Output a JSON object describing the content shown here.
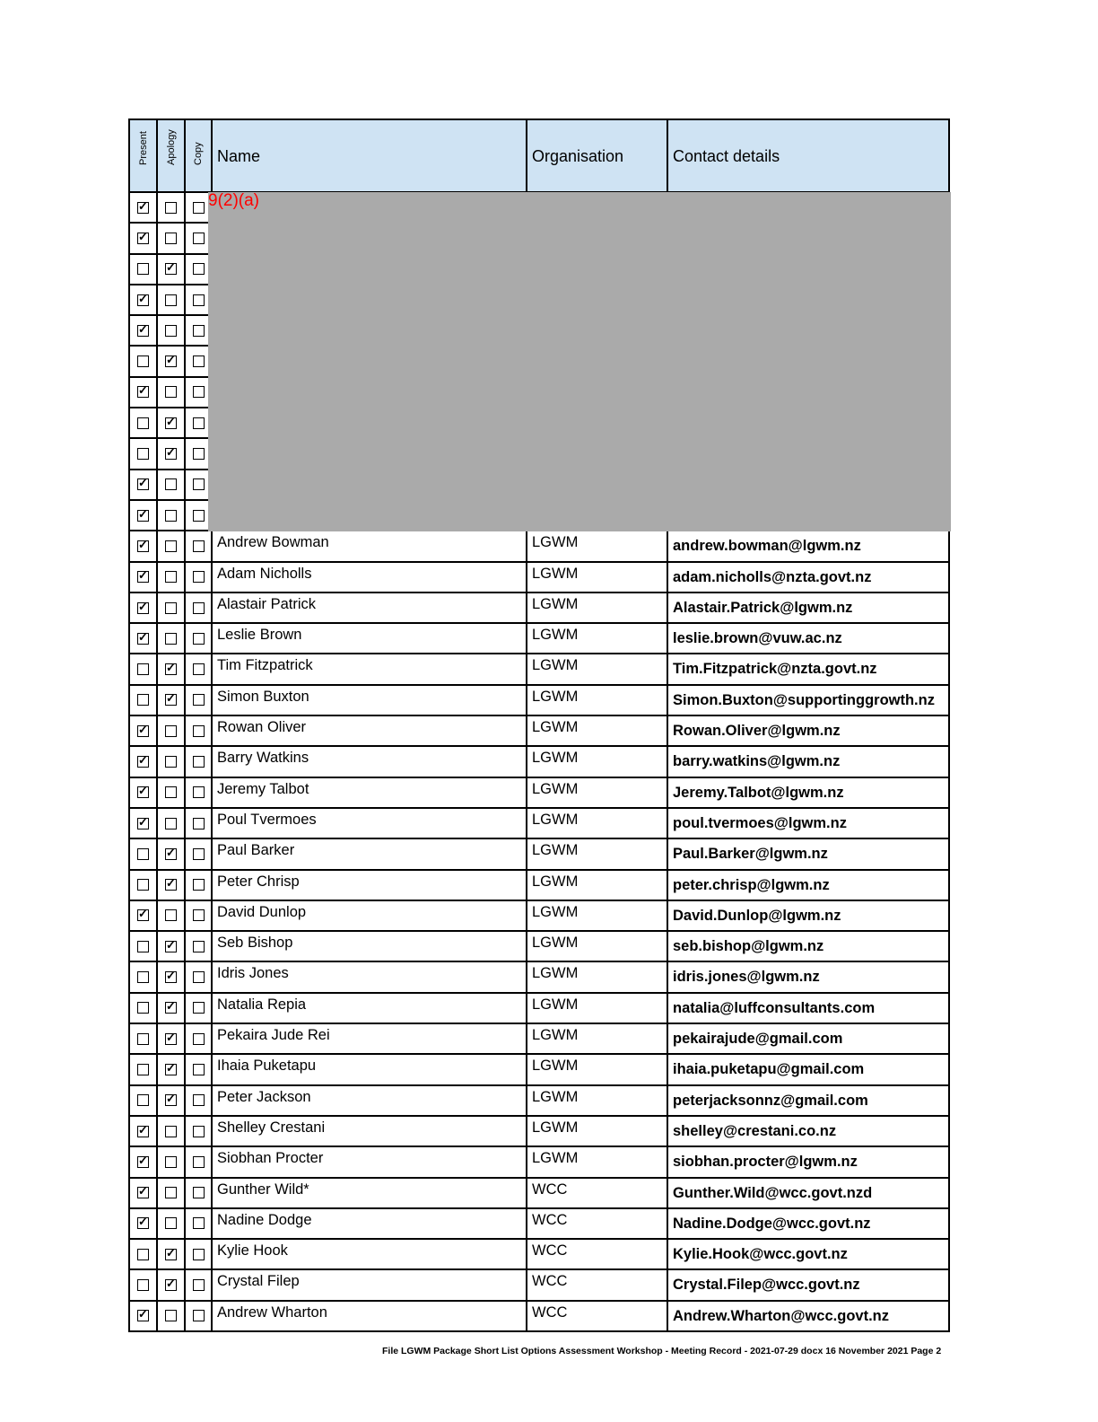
{
  "headers": {
    "present": "Present",
    "apology": "Apology",
    "copy": "Copy",
    "name": "Name",
    "organisation": "Organisation",
    "contact": "Contact details"
  },
  "redaction": {
    "label": "9(2)(a)",
    "color": "#aaaaaa"
  },
  "header_bg": "#cfe3f3",
  "redacted_rows": [
    {
      "status": "present"
    },
    {
      "status": "present"
    },
    {
      "status": "apology"
    },
    {
      "status": "present"
    },
    {
      "status": "present"
    },
    {
      "status": "apology"
    },
    {
      "status": "present"
    },
    {
      "status": "apology"
    },
    {
      "status": "apology"
    },
    {
      "status": "present"
    },
    {
      "status": "present"
    }
  ],
  "rows": [
    {
      "status": "present",
      "name": "Andrew Bowman",
      "org": "LGWM",
      "email": "andrew.bowman@lgwm.nz"
    },
    {
      "status": "present",
      "name": "Adam Nicholls",
      "org": "LGWM",
      "email": "adam.nicholls@nzta.govt.nz"
    },
    {
      "status": "present",
      "name": "Alastair Patrick",
      "org": "LGWM",
      "email": "Alastair.Patrick@lgwm.nz"
    },
    {
      "status": "present",
      "name": "Leslie Brown",
      "org": "LGWM",
      "email": "leslie.brown@vuw.ac.nz"
    },
    {
      "status": "apology",
      "name": "Tim Fitzpatrick",
      "org": "LGWM",
      "email": "Tim.Fitzpatrick@nzta.govt.nz"
    },
    {
      "status": "apology",
      "name": "Simon Buxton",
      "org": "LGWM",
      "email": "Simon.Buxton@supportinggrowth.nz"
    },
    {
      "status": "present",
      "name": "Rowan Oliver",
      "org": "LGWM",
      "email": "Rowan.Oliver@lgwm.nz"
    },
    {
      "status": "present",
      "name": "Barry Watkins",
      "org": "LGWM",
      "email": "barry.watkins@lgwm.nz"
    },
    {
      "status": "present",
      "name": "Jeremy Talbot",
      "org": "LGWM",
      "email": "Jeremy.Talbot@lgwm.nz"
    },
    {
      "status": "present",
      "name": "Poul Tvermoes",
      "org": "LGWM",
      "email": "poul.tvermoes@lgwm.nz"
    },
    {
      "status": "apology",
      "name": "Paul Barker",
      "org": "LGWM",
      "email": "Paul.Barker@lgwm.nz"
    },
    {
      "status": "apology",
      "name": "Peter Chrisp",
      "org": "LGWM",
      "email": "peter.chrisp@lgwm.nz"
    },
    {
      "status": "present",
      "name": "David Dunlop",
      "org": "LGWM",
      "email": "David.Dunlop@lgwm.nz"
    },
    {
      "status": "apology",
      "name": "Seb Bishop",
      "org": "LGWM",
      "email": "seb.bishop@lgwm.nz"
    },
    {
      "status": "apology",
      "name": "Idris Jones",
      "org": "LGWM",
      "email": "idris.jones@lgwm.nz"
    },
    {
      "status": "apology",
      "name": "Natalia Repia",
      "org": "LGWM",
      "email": "natalia@luffconsultants.com"
    },
    {
      "status": "apology",
      "name": "Pekaira Jude Rei",
      "org": "LGWM",
      "email": "pekairajude@gmail.com"
    },
    {
      "status": "apology",
      "name": "Ihaia Puketapu",
      "org": "LGWM",
      "email": "ihaia.puketapu@gmail.com"
    },
    {
      "status": "apology",
      "name": "Peter Jackson",
      "org": "LGWM",
      "email": "peterjacksonnz@gmail.com"
    },
    {
      "status": "present",
      "name": "Shelley Crestani",
      "org": "LGWM",
      "email": "shelley@crestani.co.nz"
    },
    {
      "status": "present",
      "name": "Siobhan Procter",
      "org": "LGWM",
      "email": "siobhan.procter@lgwm.nz"
    },
    {
      "status": "present",
      "name": "Gunther Wild*",
      "org": "WCC",
      "email": "Gunther.Wild@wcc.govt.nzd"
    },
    {
      "status": "present",
      "name": "Nadine Dodge",
      "org": "WCC",
      "email": "Nadine.Dodge@wcc.govt.nz"
    },
    {
      "status": "apology",
      "name": "Kylie Hook",
      "org": "WCC",
      "email": "Kylie.Hook@wcc.govt.nz"
    },
    {
      "status": "apology",
      "name": "Crystal Filep",
      "org": "WCC",
      "email": "Crystal.Filep@wcc.govt.nz"
    },
    {
      "status": "present",
      "name": "Andrew Wharton",
      "org": "WCC",
      "email": "Andrew.Wharton@wcc.govt.nz"
    }
  ],
  "footer": "File LGWM Package Short List Options Assessment Workshop - Meeting Record - 2021-07-29 docx  16 November 2021  Page 2"
}
